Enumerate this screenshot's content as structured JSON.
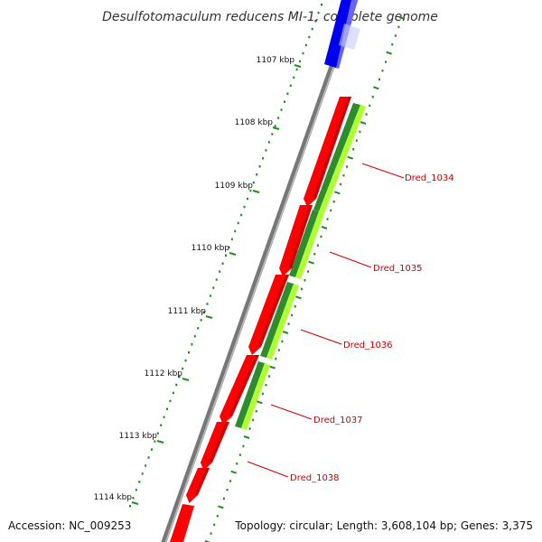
{
  "title": "Desulfotomaculum reducens MI-1, complete genome",
  "accession": "Accession: NC_009253",
  "topology": "Topology: circular; Length: 3,608,104 bp; Genes: 3,375",
  "ticks": [
    "1107 kbp",
    "1108 kbp",
    "1109 kbp",
    "1110 kbp",
    "1111 kbp",
    "1112 kbp",
    "1113 kbp",
    "1114 kbp"
  ],
  "genes": [
    {
      "id": "Dred_1034",
      "strand": "reverse"
    },
    {
      "id": "Dred_1035",
      "strand": "reverse"
    },
    {
      "id": "Dred_1036",
      "strand": "reverse"
    },
    {
      "id": "Dred_1037",
      "strand": "reverse"
    },
    {
      "id": "Dred_1038",
      "strand": "reverse"
    }
  ],
  "colors": {
    "backbone": "#888888",
    "forward_gene": "#0000ff",
    "reverse_gene": "#ff0000",
    "similarity_dark": "#2e8b2e",
    "similarity_light": "#adff2f",
    "tick_marks": "#228b22",
    "label": "#cc0000"
  }
}
